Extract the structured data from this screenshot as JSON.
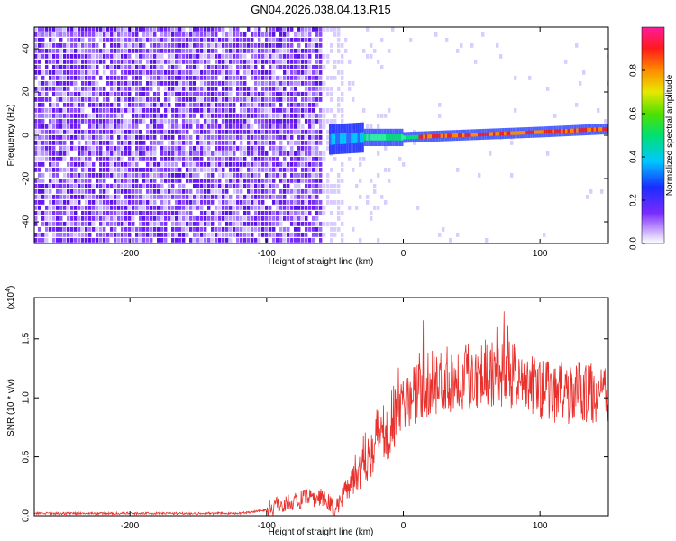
{
  "title": "GN04.2026.038.04.13.R15",
  "chart_data": [
    {
      "type": "heatmap",
      "xlabel": "Height of straight line (km)",
      "ylabel": "Frequency (Hz)",
      "xlim": [
        -270,
        150
      ],
      "ylim": [
        -50,
        50
      ],
      "x_ticks": [
        -200,
        -100,
        0,
        100
      ],
      "y_ticks": [
        -40,
        -20,
        0,
        20,
        40
      ],
      "grid": false,
      "colorbar": {
        "label": "Normalized spectral amplitude",
        "range": [
          0,
          1
        ],
        "ticks": [
          "0.0",
          "0.2",
          "0.4",
          "0.6",
          "0.8"
        ],
        "colormap": "rainbow (purple-blue-cyan-green-yellow-red-magenta)"
      },
      "colors": {
        "noise": "#7a2cff",
        "signal_peak": "#e8242a"
      },
      "ridge": [
        {
          "x": -55,
          "y": -2
        },
        {
          "x": -30,
          "y": -1
        },
        {
          "x": 0,
          "y": -1
        },
        {
          "x": 40,
          "y": 0
        },
        {
          "x": 100,
          "y": 1.5
        },
        {
          "x": 150,
          "y": 3
        }
      ]
    },
    {
      "type": "line",
      "xlabel": "Height of straight line (km)",
      "ylabel": "SNR (10 * v/v)",
      "y_multiplier": "(x10",
      "y_multiplier_exp": "4",
      "y_multiplier_close": ")",
      "xlim": [
        -270,
        150
      ],
      "ylim": [
        0,
        1.85
      ],
      "x_ticks": [
        -200,
        -100,
        0,
        100
      ],
      "y_ticks": [
        "0.0",
        "0.5",
        "1.0",
        "1.5"
      ],
      "grid": false,
      "colors": {
        "line": "#e8302c"
      },
      "series": [
        {
          "x": [
            -270,
            -200,
            -120,
            -100,
            -90,
            -80,
            -70,
            -60,
            -55,
            -50,
            -45,
            -40,
            -35,
            -30,
            -25,
            -20,
            -15,
            -10,
            -5,
            0,
            10,
            20,
            30,
            40,
            50,
            60,
            70,
            80,
            90,
            100,
            110,
            120,
            130,
            140,
            150
          ],
          "values": [
            0.02,
            0.02,
            0.02,
            0.05,
            0.1,
            0.12,
            0.15,
            0.15,
            0.12,
            0.05,
            0.15,
            0.3,
            0.35,
            0.45,
            0.55,
            0.65,
            0.72,
            0.8,
            0.88,
            0.95,
            1.05,
            1.12,
            1.15,
            1.18,
            1.2,
            1.22,
            1.23,
            1.18,
            1.12,
            1.08,
            1.05,
            1.03,
            1.05,
            1.03,
            1.0
          ]
        }
      ]
    }
  ]
}
